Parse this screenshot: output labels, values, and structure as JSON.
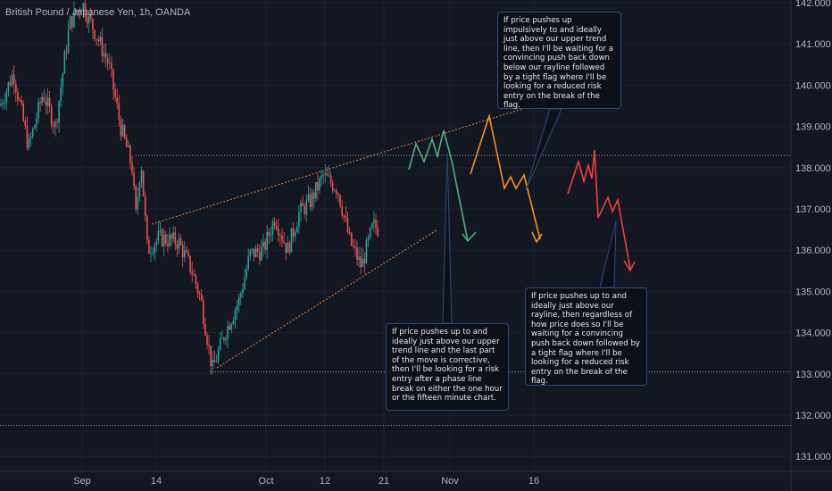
{
  "symbol_title": "British Pound / Japanese Yen, 1h, OANDA",
  "price_axis": {
    "labels": [
      "142.000",
      "141.000",
      "140.000",
      "139.000",
      "138.000",
      "137.000",
      "136.000",
      "135.000",
      "134.000",
      "133.000",
      "132.000",
      "131.000"
    ]
  },
  "time_axis": {
    "labels": [
      "Sep",
      "14",
      "Oct",
      "12",
      "21",
      "Nov",
      "16"
    ]
  },
  "levels": [
    138.3,
    133.05,
    131.75
  ],
  "projection_colors": {
    "green": "#4caf7a",
    "orange": "#f7931a",
    "red": "#ef3f3f",
    "wedge": "#c8753a"
  },
  "callouts": {
    "green": "If price pushes up to and ideally just above our upper trend line and the last part of the move is corrective, then I'll be looking for a risk entry after a phase line break on either the one hour or the fifteen minute chart.",
    "orange": "If price pushes up impulsively to and ideally just above our upper trend line, then I'll be waiting for a convincing push back down below our rayline followed by a tight flag where I'll be looking for a reduced risk entry on the break of the flag.",
    "red": "If price pushes up to and ideally just above our rayline, then regardless of how price does so I'll be waiting for a convincing push back down followed by a tight flag where I'll be looking for a reduced risk entry on the break of the flag."
  }
}
